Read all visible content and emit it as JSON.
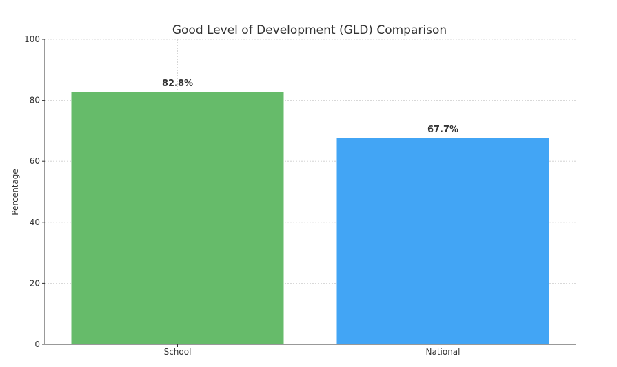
{
  "chart_data": {
    "type": "bar",
    "title": "Good Level of Development (GLD) Comparison",
    "xlabel": "",
    "ylabel": "Percentage",
    "categories": [
      "School",
      "National"
    ],
    "values": [
      82.8,
      67.7
    ],
    "data_labels": [
      "82.8%",
      "67.7%"
    ],
    "colors": [
      "#66bb6a",
      "#42a5f5"
    ],
    "ylim": [
      0,
      100
    ],
    "yticks": [
      0,
      20,
      40,
      60,
      80,
      100
    ],
    "ytick_labels": [
      "0",
      "20",
      "40",
      "60",
      "80",
      "100"
    ],
    "grid": true,
    "legend": "none"
  }
}
